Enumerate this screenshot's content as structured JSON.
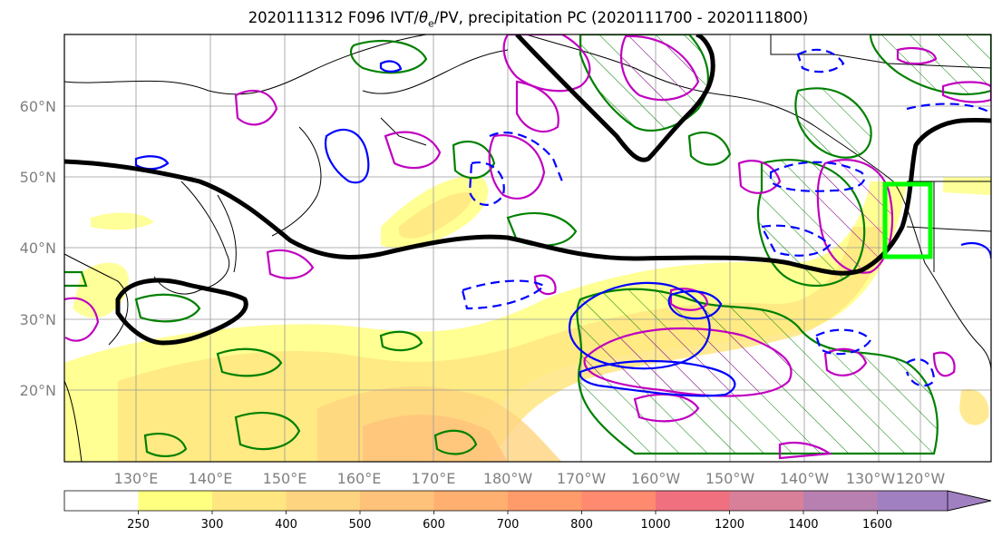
{
  "title": {
    "prefix": "2020111312 F096 IVT/",
    "theta": "θ",
    "theta_sub": "e",
    "suffix": "/PV, precipitation PC (2020111700 - 2020111800)"
  },
  "map": {
    "lat_labels": [
      "60°N",
      "50°N",
      "40°N",
      "30°N",
      "20°N"
    ],
    "lon_labels": [
      "130°E",
      "140°E",
      "150°E",
      "160°E",
      "170°E",
      "180°W",
      "170°W",
      "160°W",
      "150°W",
      "140°W",
      "130°W",
      "120°W"
    ],
    "lon_range": [
      120,
      245
    ],
    "lat_range": [
      10,
      70
    ]
  },
  "colorbar": {
    "levels": [
      "250",
      "300",
      "400",
      "500",
      "600",
      "700",
      "800",
      "1000",
      "1200",
      "1400",
      "1600"
    ],
    "colors": [
      "#ffff80",
      "#ffe680",
      "#ffd480",
      "#ffc27a",
      "#ffb070",
      "#ff9a6a",
      "#ff8a70",
      "#f07080",
      "#d8809a",
      "#b880b0",
      "#a080c0"
    ],
    "extend": "max"
  },
  "legend_colors": {
    "ivt_contour": "#000000",
    "theta_e": "#0000ff",
    "pv": "#c000c0",
    "precip": "#008000",
    "target_box": "#00ff00"
  }
}
